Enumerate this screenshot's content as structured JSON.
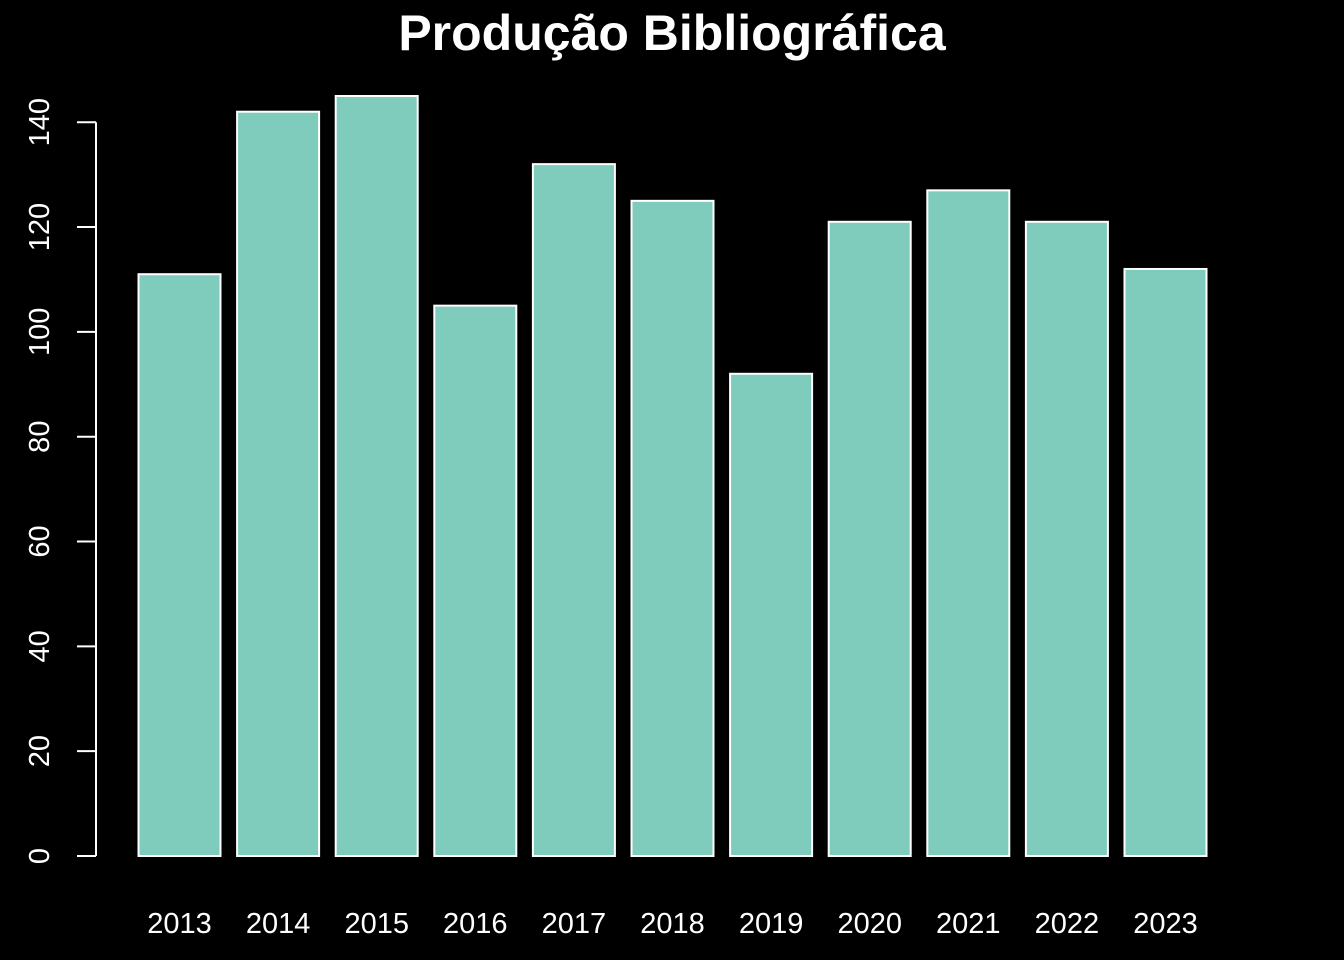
{
  "chart_data": {
    "type": "bar",
    "title": "Produção Bibliográfica",
    "xlabel": "",
    "ylabel": "",
    "categories": [
      "2013",
      "2014",
      "2015",
      "2016",
      "2017",
      "2018",
      "2019",
      "2020",
      "2021",
      "2022",
      "2023"
    ],
    "values": [
      111,
      142,
      145,
      105,
      132,
      125,
      92,
      121,
      127,
      121,
      112
    ],
    "ylim": [
      0,
      145
    ],
    "yticks": [
      "0",
      "20",
      "40",
      "60",
      "80",
      "100",
      "120",
      "140"
    ],
    "grid": false,
    "legend": "none",
    "colors": {
      "background": "#000000",
      "bar_fill": "#7fcbbc",
      "bar_stroke": "#ffffff",
      "text": "#ffffff"
    }
  }
}
